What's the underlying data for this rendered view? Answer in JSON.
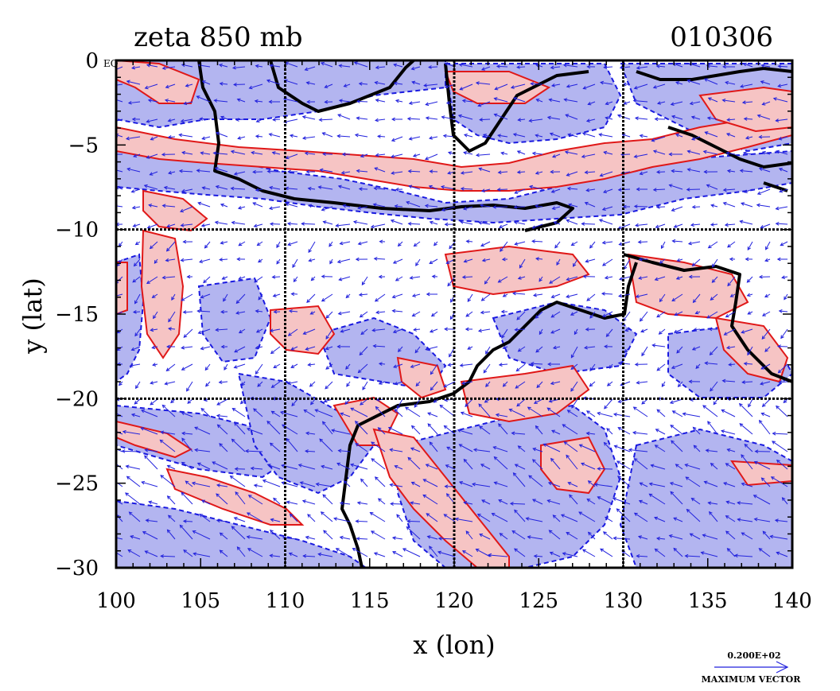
{
  "chart_data": {
    "type": "contour",
    "title": "zeta 850 mb",
    "date_label": "010306",
    "xlabel": "x (lon)",
    "ylabel": "y (lat)",
    "xlim": [
      100,
      140
    ],
    "ylim": [
      -30,
      0
    ],
    "x_ticks": [
      100,
      105,
      110,
      115,
      120,
      125,
      130,
      135,
      140
    ],
    "y_ticks": [
      0,
      -5,
      -10,
      -15,
      -20,
      -25,
      -30
    ],
    "x_tick_labels": [
      "100",
      "105",
      "110",
      "115",
      "120",
      "125",
      "130",
      "135",
      "140"
    ],
    "y_tick_labels": [
      "0",
      "−5",
      "−10",
      "−15",
      "−20",
      "−25",
      "−30"
    ],
    "y_top_suffix": "EQ",
    "grid_lines_x": [
      110,
      120,
      130
    ],
    "grid_lines_y": [
      -10,
      -20
    ],
    "grid": true,
    "colors": {
      "positive_fill": "#f6c4c4",
      "positive_line": "#e01818",
      "negative_fill": "#b3b5f0",
      "negative_line": "#1a1ae0",
      "vector": "#2222dd",
      "coast": "#000000"
    },
    "legend": {
      "vector_value": "0.200E+02",
      "vector_label": "MAXIMUM VECTOR",
      "placement": "bottom-right"
    }
  }
}
